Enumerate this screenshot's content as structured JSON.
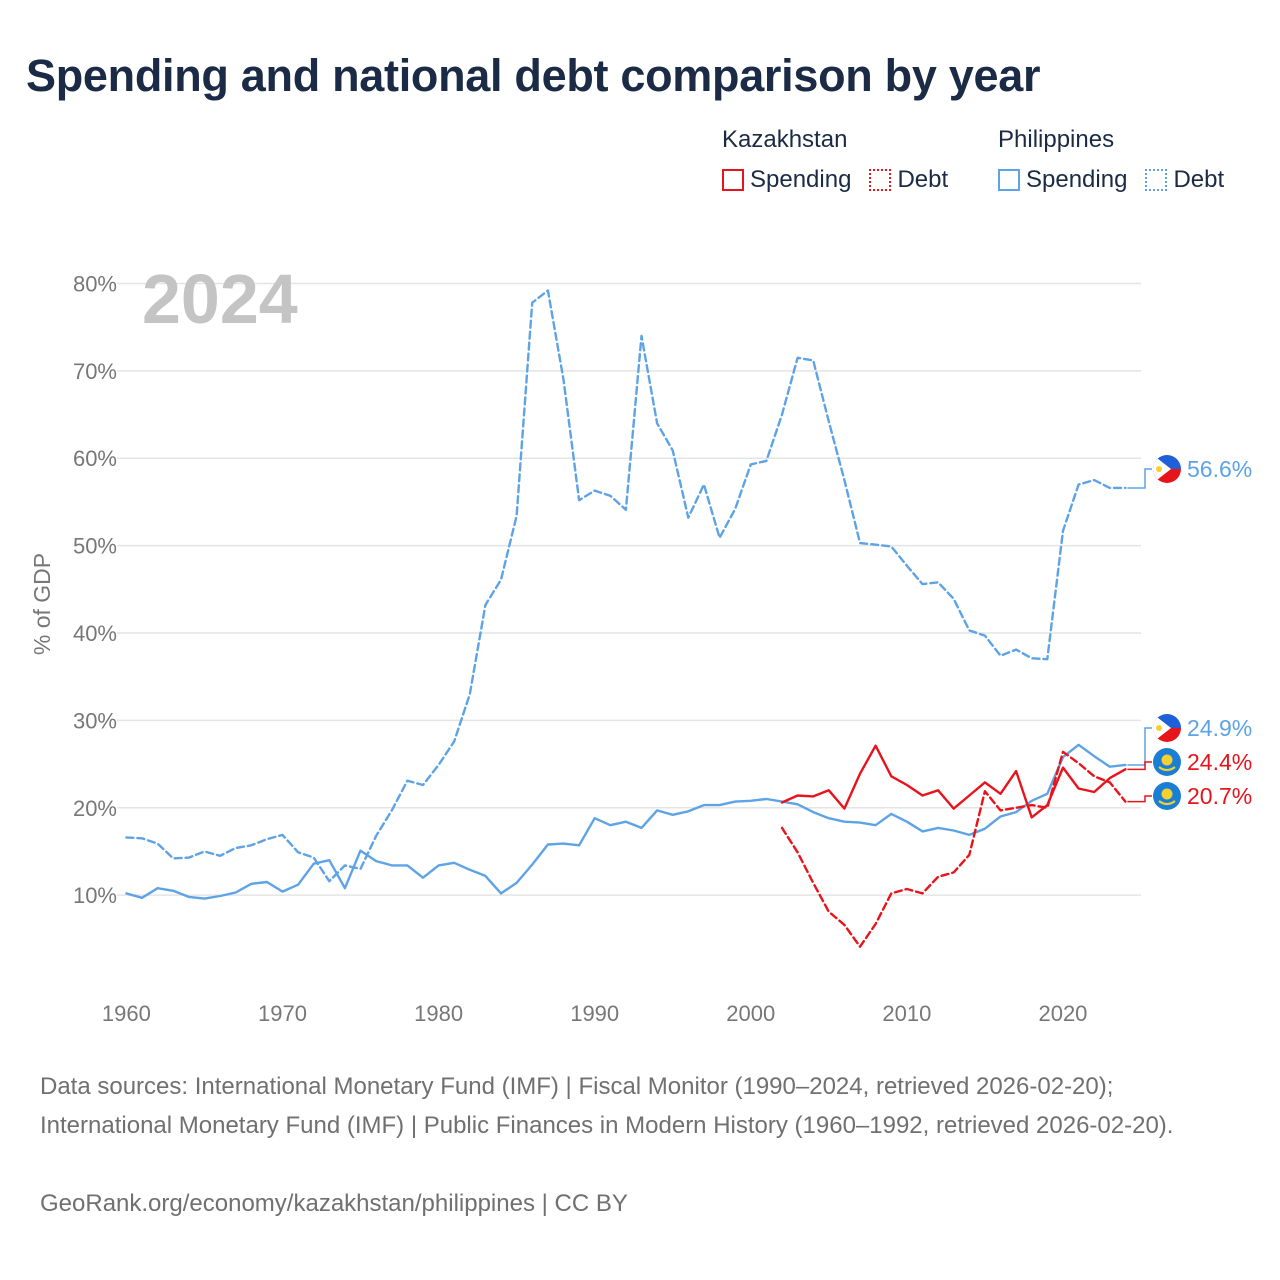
{
  "title": "Spending and national debt comparison by year",
  "legend": {
    "kazakhstan": {
      "name": "Kazakhstan",
      "spending": "Spending",
      "debt": "Debt"
    },
    "philippines": {
      "name": "Philippines",
      "spending": "Spending",
      "debt": "Debt"
    }
  },
  "colors": {
    "kazakhstan": "#e8141c",
    "philippines": "#5ea3e6",
    "grid": "#e4e4e4",
    "axis_text": "#777777",
    "year_watermark": "#c4c4c4"
  },
  "source_text": "Data sources: International Monetary Fund (IMF) | Fiscal Monitor (1990–2024, retrieved 2026-02-20); International Monetary Fund (IMF) | Public Finances in Modern History (1960–1992, retrieved 2026-02-20).",
  "credit_text": "GeoRank.org/economy/kazakhstan/philippines | CC BY",
  "chart_data": {
    "type": "line",
    "year_label": "2024",
    "ylabel": "% of GDP",
    "xlim": [
      1958.5,
      2025
    ],
    "ylim": [
      -2,
      82
    ],
    "yticks": [
      10,
      20,
      30,
      40,
      50,
      60,
      70,
      80
    ],
    "yticklabels": [
      "10%",
      "20%",
      "30%",
      "40%",
      "50%",
      "60%",
      "70%",
      "80%"
    ],
    "xticks": [
      1960,
      1970,
      1980,
      1990,
      2000,
      2010,
      2020
    ],
    "xticklabels": [
      "1960",
      "1970",
      "1980",
      "1990",
      "2000",
      "2010",
      "2020"
    ],
    "series": [
      {
        "name": "Philippines Debt",
        "country": "philippines",
        "style": "dashed",
        "end_label": "56.6%",
        "start": 1960,
        "values": [
          16.6,
          16.5,
          15.9,
          14.2,
          14.3,
          15.0,
          14.5,
          15.4,
          15.7,
          16.4,
          16.9,
          14.9,
          14.3,
          11.6,
          13.4,
          13.0,
          16.8,
          19.7,
          23.1,
          22.6,
          24.9,
          27.6,
          33.0,
          43.2,
          46.1,
          53.4,
          77.8,
          79.2,
          69.0,
          55.2,
          56.3,
          55.7,
          54.1,
          74.0,
          64.0,
          60.9,
          53.2,
          57.0,
          50.9,
          54.2,
          59.3,
          59.7,
          65.0,
          71.5,
          71.2,
          64.2,
          57.5,
          50.3,
          50.1,
          49.9,
          47.7,
          45.6,
          45.8,
          43.9,
          40.3,
          39.7,
          37.4,
          38.1,
          37.1,
          37.0,
          51.7,
          57.0,
          57.5,
          56.6,
          56.6
        ]
      },
      {
        "name": "Philippines Spending",
        "country": "philippines",
        "style": "solid",
        "end_label": "24.9%",
        "start": 1960,
        "values": [
          10.2,
          9.7,
          10.8,
          10.5,
          9.8,
          9.6,
          9.9,
          10.3,
          11.3,
          11.5,
          10.4,
          11.2,
          13.6,
          14.0,
          10.8,
          15.1,
          13.9,
          13.4,
          13.4,
          12.0,
          13.4,
          13.7,
          12.9,
          12.2,
          10.2,
          11.4,
          13.5,
          15.8,
          15.9,
          15.7,
          18.8,
          18.0,
          18.4,
          17.7,
          19.7,
          19.2,
          19.6,
          20.3,
          20.3,
          20.7,
          20.8,
          21.0,
          20.7,
          20.4,
          19.5,
          18.8,
          18.4,
          18.3,
          18.0,
          19.3,
          18.4,
          17.3,
          17.7,
          17.4,
          16.9,
          17.6,
          19.0,
          19.5,
          20.8,
          21.6,
          25.8,
          27.2,
          25.9,
          24.7,
          24.9
        ]
      },
      {
        "name": "Kazakhstan Spending",
        "country": "kazakhstan",
        "style": "solid",
        "end_label": "24.4%",
        "start": 2002,
        "values": [
          20.6,
          21.4,
          21.3,
          22.0,
          19.9,
          23.9,
          27.1,
          23.6,
          22.6,
          21.4,
          22.0,
          19.9,
          21.4,
          22.9,
          21.6,
          24.2,
          18.9,
          20.3,
          24.6,
          22.2,
          21.8,
          23.4,
          24.4
        ]
      },
      {
        "name": "Kazakhstan Debt",
        "country": "kazakhstan",
        "style": "dashed",
        "end_label": "20.7%",
        "start": 2002,
        "values": [
          17.7,
          14.9,
          11.4,
          8.1,
          6.6,
          4.1,
          6.7,
          10.2,
          10.7,
          10.2,
          12.1,
          12.6,
          14.6,
          21.9,
          19.7,
          20.0,
          20.3,
          20.0,
          26.4,
          25.1,
          23.6,
          22.9,
          20.7
        ]
      }
    ]
  }
}
